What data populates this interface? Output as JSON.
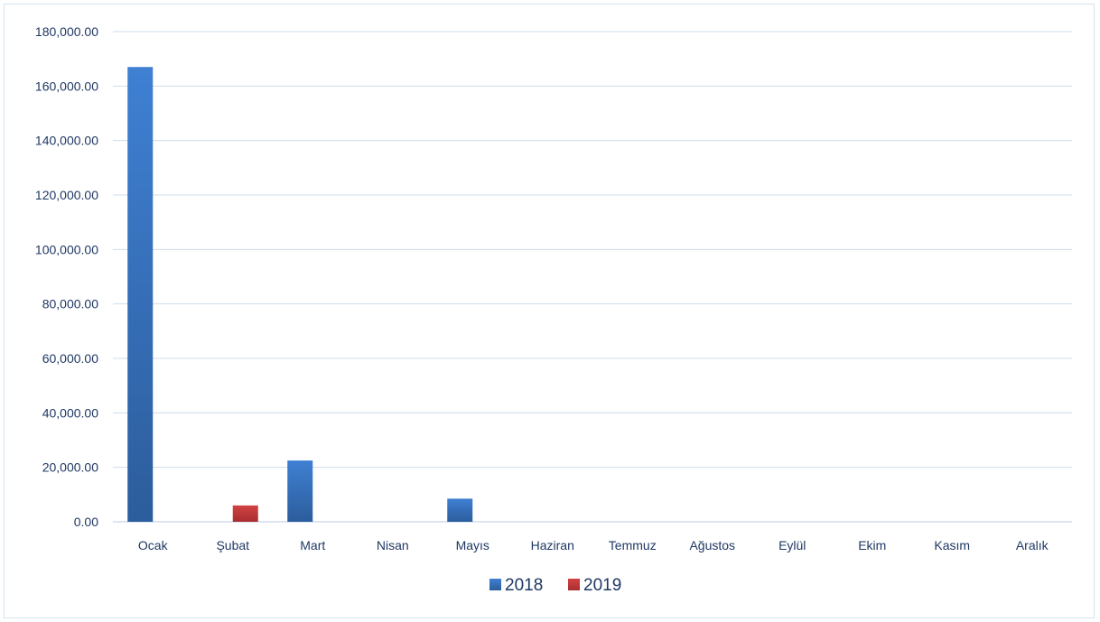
{
  "chart_data": {
    "type": "bar",
    "title": "",
    "xlabel": "",
    "ylabel": "",
    "categories": [
      "Ocak",
      "Şubat",
      "Mart",
      "Nisan",
      "Mayıs",
      "Haziran",
      "Temmuz",
      "Ağustos",
      "Eylül",
      "Ekim",
      "Kasım",
      "Aralık"
    ],
    "series": [
      {
        "name": "2018",
        "color": "#3a78c9",
        "values": [
          167000,
          0,
          22500,
          0,
          8500,
          0,
          0,
          0,
          0,
          0,
          0,
          0
        ]
      },
      {
        "name": "2019",
        "color": "#c0393b",
        "values": [
          0,
          6000,
          0,
          0,
          0,
          0,
          0,
          0,
          0,
          0,
          0,
          0
        ]
      }
    ],
    "ylim": [
      0,
      180000
    ],
    "yticks": [
      "0.00",
      "20,000.00",
      "40,000.00",
      "60,000.00",
      "80,000.00",
      "100,000.00",
      "120,000.00",
      "140,000.00",
      "160,000.00",
      "180,000.00"
    ],
    "ytick_values": [
      0,
      20000,
      40000,
      60000,
      80000,
      100000,
      120000,
      140000,
      160000,
      180000
    ],
    "grid": true,
    "legend_position": "bottom"
  }
}
